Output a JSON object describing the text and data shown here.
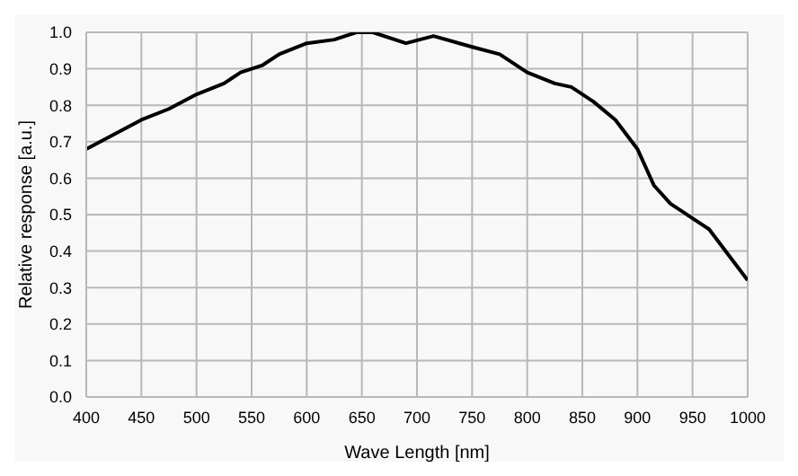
{
  "chart_data": {
    "type": "line",
    "xlabel": "Wave Length [nm]",
    "ylabel": "Relative response [a.u.]",
    "x": [
      400,
      425,
      450,
      475,
      500,
      525,
      540,
      560,
      575,
      600,
      625,
      645,
      660,
      690,
      715,
      750,
      775,
      800,
      825,
      840,
      860,
      880,
      900,
      915,
      930,
      950,
      965,
      985,
      1000
    ],
    "series": [
      {
        "color": "#000000",
        "values": [
          0.68,
          0.72,
          0.76,
          0.79,
          0.83,
          0.86,
          0.89,
          0.91,
          0.94,
          0.97,
          0.98,
          1.0,
          1.0,
          0.97,
          0.99,
          0.96,
          0.94,
          0.89,
          0.86,
          0.85,
          0.81,
          0.76,
          0.68,
          0.58,
          0.53,
          0.49,
          0.46,
          0.38,
          0.32
        ]
      }
    ],
    "xlim": [
      400,
      1000
    ],
    "xticks": [
      400,
      450,
      500,
      550,
      600,
      650,
      700,
      750,
      800,
      850,
      900,
      950,
      1000
    ],
    "ylim": [
      0,
      1
    ],
    "yticks": [
      {
        "value": 0,
        "label": "0.0"
      },
      {
        "value": 0.1,
        "label": "0.1"
      },
      {
        "value": 0.2,
        "label": "0.2"
      },
      {
        "value": 0.3,
        "label": "0.3"
      },
      {
        "value": 0.4,
        "label": "0.4"
      },
      {
        "value": 0.5,
        "label": "0.5"
      },
      {
        "value": 0.6,
        "label": "0.6"
      },
      {
        "value": 0.7,
        "label": "0.7"
      },
      {
        "value": 0.8,
        "label": "0.8"
      },
      {
        "value": 0.9,
        "label": "0.9"
      },
      {
        "value": 1,
        "label": "1.0"
      }
    ],
    "grid": true,
    "marker": "none",
    "line_style": "solid"
  }
}
